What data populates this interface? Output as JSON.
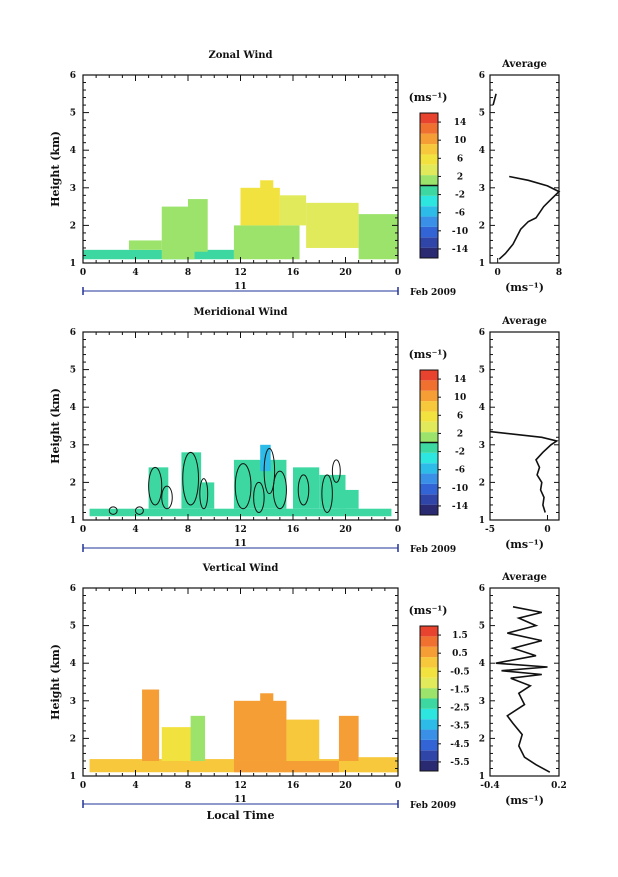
{
  "page": {
    "xlabel": "Local Time",
    "date_labels": {
      "day": "11",
      "month_year": "Feb 2009"
    }
  },
  "chart_data": [
    {
      "type": "heatmap",
      "title": "Zonal Wind",
      "xlabel": "",
      "ylabel": "Height (km)",
      "xlim": [
        0,
        24
      ],
      "ylim": [
        1,
        6
      ],
      "xticks": [
        "0",
        "4",
        "8",
        "12",
        "16",
        "20",
        "0"
      ],
      "yticks": [
        "1",
        "2",
        "3",
        "4",
        "5",
        "6"
      ],
      "colorbar": {
        "unit_label": "(ms⁻¹)",
        "range": [
          -16,
          16
        ],
        "tick_values": [
          14,
          10,
          6,
          2,
          -2,
          -6,
          -10,
          -14
        ],
        "tick_labels": [
          "14",
          "10",
          "6",
          "2",
          "-2",
          "-6",
          "-10",
          "-14"
        ],
        "divider_value": 0
      },
      "regions": [
        {
          "t0": 0,
          "t1": 11.5,
          "h0": 1.1,
          "h1": 1.35,
          "v": -1
        },
        {
          "t0": 3.5,
          "t1": 6.0,
          "h0": 1.35,
          "h1": 1.6,
          "v": 0
        },
        {
          "t0": 6.0,
          "t1": 8.5,
          "h0": 1.1,
          "h1": 2.5,
          "v": 1
        },
        {
          "t0": 8.0,
          "t1": 9.5,
          "h0": 1.3,
          "h1": 2.7,
          "v": 2
        },
        {
          "t0": 11.5,
          "t1": 16.5,
          "h0": 1.1,
          "h1": 2.0,
          "v": 2
        },
        {
          "t0": 12.0,
          "t1": 15.0,
          "h0": 2.0,
          "h1": 3.0,
          "v": 5
        },
        {
          "t0": 13.5,
          "t1": 14.5,
          "h0": 2.7,
          "h1": 3.2,
          "v": 6
        },
        {
          "t0": 15.0,
          "t1": 17.0,
          "h0": 2.0,
          "h1": 2.8,
          "v": 4
        },
        {
          "t0": 17.0,
          "t1": 21.0,
          "h0": 1.4,
          "h1": 2.6,
          "v": 3
        },
        {
          "t0": 21.0,
          "t1": 24.0,
          "h0": 1.1,
          "h1": 2.3,
          "v": 2
        }
      ],
      "contours": [],
      "profile": {
        "title": "Average",
        "xlabel": "(ms⁻¹)",
        "xlim": [
          -1,
          8
        ],
        "xticks": [
          0,
          8
        ],
        "xtick_labels": [
          "0",
          "8"
        ],
        "ylim": [
          1,
          6
        ],
        "yticks": [
          "1",
          "2",
          "3",
          "4",
          "5",
          "6"
        ],
        "points": [
          [
            0.2,
            1.1
          ],
          [
            1.0,
            1.25
          ],
          [
            2.0,
            1.5
          ],
          [
            3.0,
            1.9
          ],
          [
            4.0,
            2.1
          ],
          [
            5.0,
            2.2
          ],
          [
            6.0,
            2.5
          ],
          [
            7.0,
            2.7
          ],
          [
            8.0,
            2.9
          ],
          [
            6.5,
            3.05
          ],
          [
            4.0,
            3.2
          ],
          [
            1.5,
            3.3
          ]
        ],
        "fragments": [
          [
            [
              -0.6,
              5.2
            ],
            [
              -0.2,
              5.5
            ]
          ]
        ]
      }
    },
    {
      "type": "heatmap",
      "title": "Meridional Wind",
      "xlabel": "",
      "ylabel": "Height (km)",
      "xlim": [
        0,
        24
      ],
      "ylim": [
        1,
        6
      ],
      "xticks": [
        "0",
        "4",
        "8",
        "12",
        "16",
        "20",
        "0"
      ],
      "yticks": [
        "1",
        "2",
        "3",
        "4",
        "5",
        "6"
      ],
      "colorbar": {
        "unit_label": "(ms⁻¹)",
        "range": [
          -16,
          16
        ],
        "tick_values": [
          14,
          10,
          6,
          2,
          -2,
          -6,
          -10,
          -14
        ],
        "tick_labels": [
          "14",
          "10",
          "6",
          "2",
          "-2",
          "-6",
          "-10",
          "-14"
        ],
        "divider_value": 0
      },
      "regions": [
        {
          "t0": 0.5,
          "t1": 23.5,
          "h0": 1.1,
          "h1": 1.3,
          "v": -2
        },
        {
          "t0": 5.0,
          "t1": 6.5,
          "h0": 1.3,
          "h1": 2.4,
          "v": -2
        },
        {
          "t0": 7.5,
          "t1": 9.0,
          "h0": 1.3,
          "h1": 2.8,
          "v": -1
        },
        {
          "t0": 9.0,
          "t1": 10.0,
          "h0": 1.3,
          "h1": 2.0,
          "v": -2
        },
        {
          "t0": 11.5,
          "t1": 15.5,
          "h0": 1.3,
          "h1": 2.6,
          "v": -1
        },
        {
          "t0": 13.5,
          "t1": 14.3,
          "h0": 2.3,
          "h1": 3.0,
          "v": -5
        },
        {
          "t0": 16.0,
          "t1": 18.0,
          "h0": 1.3,
          "h1": 2.4,
          "v": -2
        },
        {
          "t0": 18.0,
          "t1": 20.0,
          "h0": 1.3,
          "h1": 2.2,
          "v": -1
        },
        {
          "t0": 19.5,
          "t1": 21.0,
          "h0": 1.3,
          "h1": 1.8,
          "v": -2
        }
      ],
      "contours": [
        {
          "t": 5.5,
          "h": 1.9,
          "rx": 0.5,
          "rh": 0.5
        },
        {
          "t": 6.4,
          "h": 1.6,
          "rx": 0.4,
          "rh": 0.3
        },
        {
          "t": 8.2,
          "h": 2.1,
          "rx": 0.6,
          "rh": 0.7
        },
        {
          "t": 9.2,
          "h": 1.7,
          "rx": 0.3,
          "rh": 0.4
        },
        {
          "t": 12.2,
          "h": 1.9,
          "rx": 0.6,
          "rh": 0.6
        },
        {
          "t": 13.4,
          "h": 1.6,
          "rx": 0.4,
          "rh": 0.4
        },
        {
          "t": 14.2,
          "h": 2.3,
          "rx": 0.4,
          "rh": 0.6
        },
        {
          "t": 15.0,
          "h": 1.8,
          "rx": 0.5,
          "rh": 0.5
        },
        {
          "t": 16.8,
          "h": 1.8,
          "rx": 0.4,
          "rh": 0.4
        },
        {
          "t": 18.6,
          "h": 1.7,
          "rx": 0.4,
          "rh": 0.5
        },
        {
          "t": 19.3,
          "h": 2.3,
          "rx": 0.3,
          "rh": 0.3
        },
        {
          "t": 4.3,
          "h": 1.25,
          "rx": 0.3,
          "rh": 0.1
        },
        {
          "t": 2.3,
          "h": 1.25,
          "rx": 0.3,
          "rh": 0.1
        }
      ],
      "profile": {
        "title": "Average",
        "xlabel": "(ms⁻¹)",
        "xlim": [
          -5,
          1
        ],
        "xticks": [
          -5,
          0
        ],
        "xtick_labels": [
          "-5",
          "0"
        ],
        "ylim": [
          1,
          6
        ],
        "yticks": [
          "1",
          "2",
          "3",
          "4",
          "5",
          "6"
        ],
        "points": [
          [
            -0.2,
            1.2
          ],
          [
            -0.4,
            1.4
          ],
          [
            -0.3,
            1.6
          ],
          [
            -0.6,
            1.8
          ],
          [
            -0.5,
            2.0
          ],
          [
            -0.9,
            2.2
          ],
          [
            -0.7,
            2.4
          ],
          [
            -1.0,
            2.6
          ],
          [
            -0.4,
            2.8
          ],
          [
            0.3,
            3.0
          ],
          [
            0.8,
            3.1
          ],
          [
            -0.5,
            3.2
          ],
          [
            -5.0,
            3.35
          ]
        ],
        "fragments": []
      }
    },
    {
      "type": "heatmap",
      "title": "Vertical Wind",
      "xlabel": "Local Time",
      "ylabel": "Height (km)",
      "xlim": [
        0,
        24
      ],
      "ylim": [
        1,
        6
      ],
      "xticks": [
        "0",
        "4",
        "8",
        "12",
        "16",
        "20",
        "0"
      ],
      "yticks": [
        "1",
        "2",
        "3",
        "4",
        "5",
        "6"
      ],
      "colorbar": {
        "unit_label": "(ms⁻¹)",
        "range": [
          -6.0,
          2.0
        ],
        "tick_values": [
          1.5,
          0.5,
          -0.5,
          -1.5,
          -2.5,
          -3.5,
          -4.5,
          -5.5
        ],
        "tick_labels": [
          "1.5",
          "0.5",
          "-0.5",
          "-1.5",
          "-2.5",
          "-3.5",
          "-4.5",
          "-5.5"
        ],
        "divider_value": null
      },
      "regions": [
        {
          "t0": 0.5,
          "t1": 24.0,
          "h0": 1.1,
          "h1": 1.45,
          "v": -0.2
        },
        {
          "t0": 4.5,
          "t1": 5.8,
          "h0": 1.4,
          "h1": 3.3,
          "v": 0.6
        },
        {
          "t0": 6.0,
          "t1": 8.5,
          "h0": 1.4,
          "h1": 2.3,
          "v": -0.3
        },
        {
          "t0": 8.2,
          "t1": 9.3,
          "h0": 1.4,
          "h1": 2.6,
          "v": -1.6
        },
        {
          "t0": 11.5,
          "t1": 19.5,
          "h0": 1.1,
          "h1": 1.4,
          "v": 0.6
        },
        {
          "t0": 11.5,
          "t1": 15.5,
          "h0": 1.4,
          "h1": 3.0,
          "v": 0.3
        },
        {
          "t0": 13.5,
          "t1": 14.5,
          "h0": 2.5,
          "h1": 3.2,
          "v": 0.7
        },
        {
          "t0": 15.5,
          "t1": 18.0,
          "h0": 1.4,
          "h1": 2.5,
          "v": -0.2
        },
        {
          "t0": 19.5,
          "t1": 21.0,
          "h0": 1.4,
          "h1": 2.6,
          "v": 0.4
        },
        {
          "t0": 21.0,
          "t1": 24.0,
          "h0": 1.1,
          "h1": 1.5,
          "v": -0.2
        }
      ],
      "contours": [],
      "profile": {
        "title": "Average",
        "xlabel": "(ms⁻¹)",
        "xlim": [
          -0.4,
          0.2
        ],
        "xticks": [
          -0.4,
          0.2
        ],
        "xtick_labels": [
          "-0.4",
          "0.2"
        ],
        "ylim": [
          1,
          6
        ],
        "yticks": [
          "1",
          "2",
          "3",
          "4",
          "5",
          "6"
        ],
        "points": [
          [
            0.12,
            1.1
          ],
          [
            0.0,
            1.3
          ],
          [
            -0.1,
            1.5
          ],
          [
            -0.15,
            1.8
          ],
          [
            -0.12,
            2.1
          ],
          [
            -0.2,
            2.4
          ],
          [
            -0.25,
            2.6
          ],
          [
            -0.1,
            2.9
          ],
          [
            -0.15,
            3.2
          ],
          [
            -0.05,
            3.4
          ],
          [
            -0.22,
            3.6
          ],
          [
            0.05,
            3.7
          ],
          [
            -0.3,
            3.8
          ],
          [
            0.1,
            3.9
          ],
          [
            -0.35,
            4.0
          ],
          [
            0.0,
            4.2
          ],
          [
            -0.2,
            4.4
          ],
          [
            0.05,
            4.6
          ],
          [
            -0.25,
            4.8
          ],
          [
            0.0,
            5.0
          ],
          [
            -0.15,
            5.2
          ],
          [
            0.05,
            5.35
          ],
          [
            -0.2,
            5.5
          ]
        ],
        "fragments": []
      }
    }
  ]
}
